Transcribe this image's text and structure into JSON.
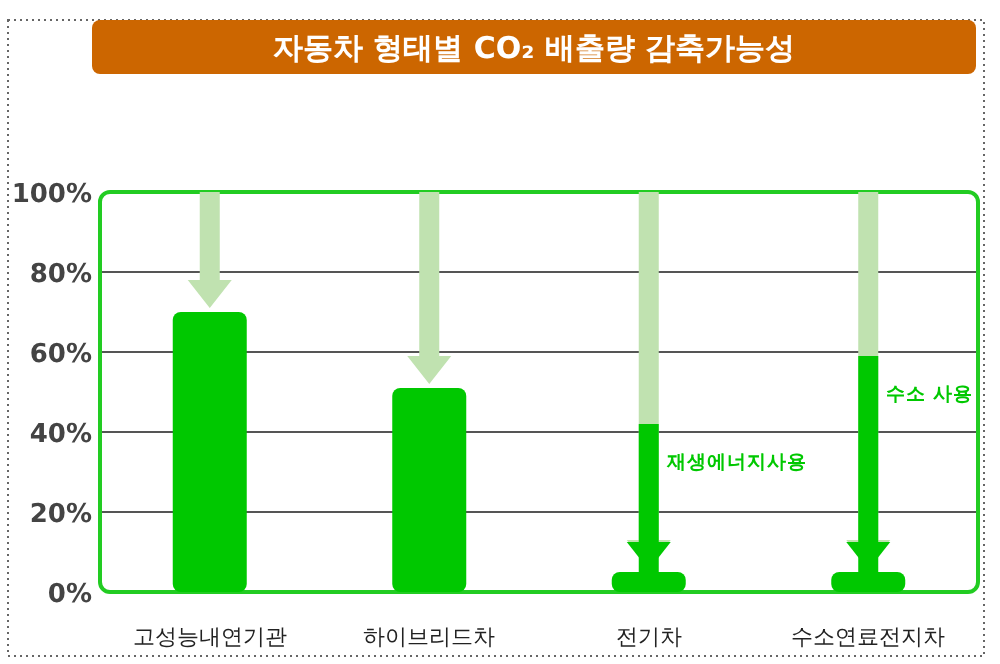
{
  "chart_data": {
    "type": "bar",
    "title": "자동차 형태별 CO₂ 배출량 감축가능성",
    "categories": [
      "고성능내연기관",
      "하이브리드차",
      "전기차",
      "수소연료전지차"
    ],
    "series": [
      {
        "color": "#00c800",
        "values": [
          70,
          51,
          5,
          5
        ]
      },
      {
        "type": "bar",
        "color": "#00c800",
        "values": [
          null,
          null,
          37,
          54
        ]
      }
    ],
    "stacked": true,
    "ylim": [
      0,
      100
    ],
    "yticks": [
      {
        "value": 0,
        "label": "0%"
      },
      {
        "value": 20,
        "label": "20%"
      },
      {
        "value": 40,
        "label": "40%"
      },
      {
        "value": 60,
        "label": "60%"
      },
      {
        "value": 80,
        "label": "80%"
      },
      {
        "value": 100,
        "label": "100%"
      }
    ],
    "grid": "y",
    "annotations": [
      "재생에너지사용",
      "수소 사용"
    ]
  }
}
